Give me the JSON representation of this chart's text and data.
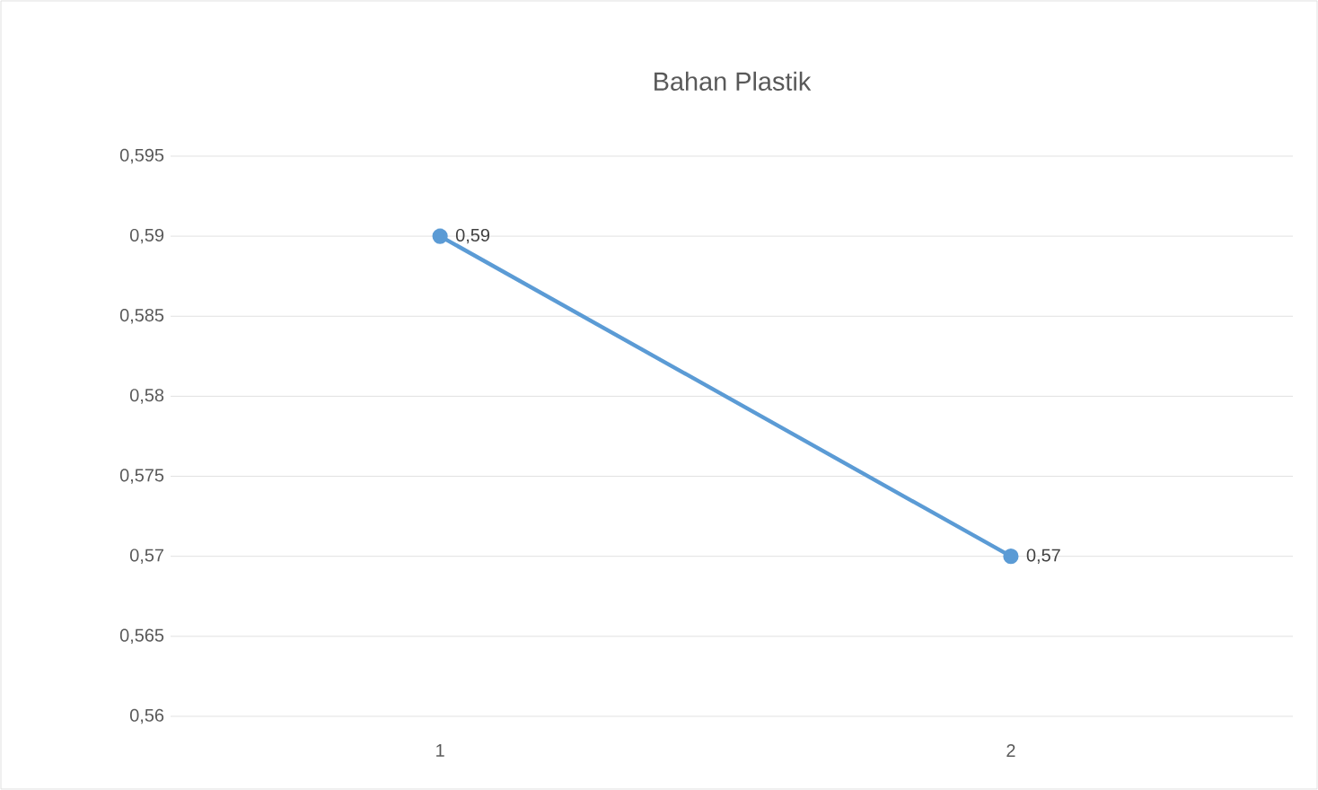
{
  "chart_data": {
    "type": "line",
    "title": "Bahan Plastik",
    "categories": [
      "1",
      "2"
    ],
    "series": [
      {
        "color": "#5b9bd5",
        "values": [
          0.59,
          0.57
        ],
        "value_labels": [
          "0,59",
          "0,57"
        ]
      }
    ],
    "ylim": [
      0.56,
      0.595
    ],
    "yticks": [
      {
        "value": 0.56,
        "label": "0,56"
      },
      {
        "value": 0.565,
        "label": "0,565"
      },
      {
        "value": 0.57,
        "label": "0,57"
      },
      {
        "value": 0.575,
        "label": "0,575"
      },
      {
        "value": 0.58,
        "label": "0,58"
      },
      {
        "value": 0.585,
        "label": "0,585"
      },
      {
        "value": 0.59,
        "label": "0,59"
      },
      {
        "value": 0.595,
        "label": "0,595"
      }
    ],
    "grid": "y",
    "marker": "circle",
    "line_style": "solid"
  }
}
